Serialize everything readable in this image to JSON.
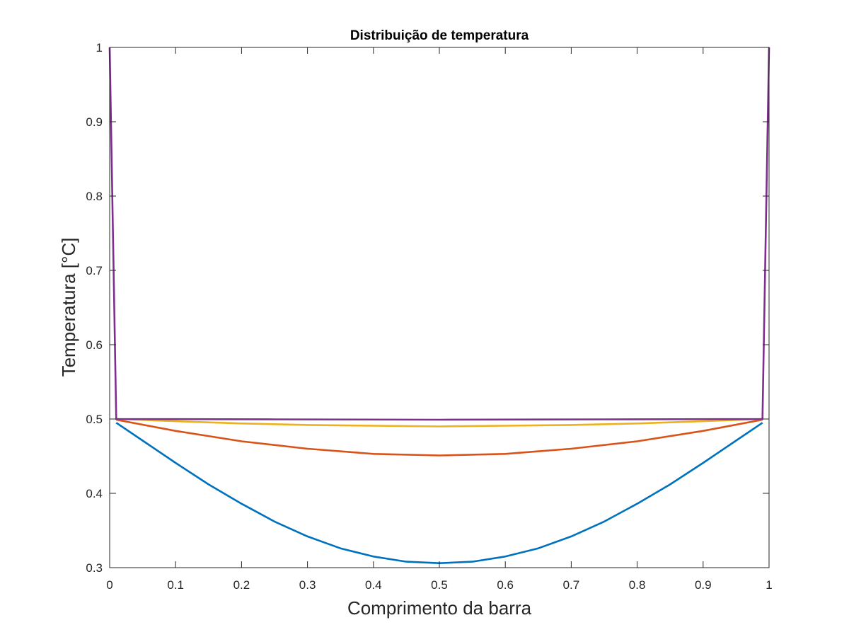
{
  "chart_data": {
    "type": "line",
    "title": "Distribuição de temperatura",
    "xlabel": "Comprimento da barra",
    "ylabel": "Temperatura [°C]",
    "xlim": [
      0,
      1
    ],
    "ylim": [
      0.3,
      1
    ],
    "xticks": [
      0,
      0.1,
      0.2,
      0.3,
      0.4,
      0.5,
      0.6,
      0.7,
      0.8,
      0.9,
      1
    ],
    "xtick_labels": [
      "0",
      "0.1",
      "0.2",
      "0.3",
      "0.4",
      "0.5",
      "0.6",
      "0.7",
      "0.8",
      "0.9",
      "1"
    ],
    "yticks": [
      0.3,
      0.4,
      0.5,
      0.6,
      0.7,
      0.8,
      0.9,
      1
    ],
    "ytick_labels": [
      "0.3",
      "0.4",
      "0.5",
      "0.6",
      "0.7",
      "0.8",
      "0.9",
      "1"
    ],
    "grid": false,
    "box": true,
    "series": [
      {
        "color": "#0072BD",
        "x": [
          0.01,
          0.05,
          0.1,
          0.15,
          0.2,
          0.25,
          0.3,
          0.35,
          0.4,
          0.45,
          0.5,
          0.55,
          0.6,
          0.65,
          0.7,
          0.75,
          0.8,
          0.85,
          0.9,
          0.95,
          0.99
        ],
        "y": [
          0.495,
          0.471,
          0.441,
          0.412,
          0.386,
          0.362,
          0.342,
          0.326,
          0.315,
          0.308,
          0.306,
          0.308,
          0.315,
          0.326,
          0.342,
          0.362,
          0.386,
          0.412,
          0.441,
          0.471,
          0.495
        ]
      },
      {
        "color": "#D95319",
        "x": [
          0.01,
          0.1,
          0.2,
          0.3,
          0.4,
          0.5,
          0.6,
          0.7,
          0.8,
          0.9,
          0.99
        ],
        "y": [
          0.499,
          0.484,
          0.47,
          0.46,
          0.453,
          0.451,
          0.453,
          0.46,
          0.47,
          0.484,
          0.499
        ]
      },
      {
        "color": "#EDB120",
        "x": [
          0.01,
          0.1,
          0.2,
          0.3,
          0.4,
          0.5,
          0.6,
          0.7,
          0.8,
          0.9,
          0.99
        ],
        "y": [
          0.5,
          0.497,
          0.494,
          0.492,
          0.491,
          0.49,
          0.491,
          0.492,
          0.494,
          0.497,
          0.5
        ]
      },
      {
        "color": "#7E2F8E",
        "x": [
          0,
          0.01,
          0.25,
          0.5,
          0.75,
          0.99,
          1
        ],
        "y": [
          1,
          0.5,
          0.4995,
          0.499,
          0.4995,
          0.5,
          1
        ]
      }
    ]
  }
}
